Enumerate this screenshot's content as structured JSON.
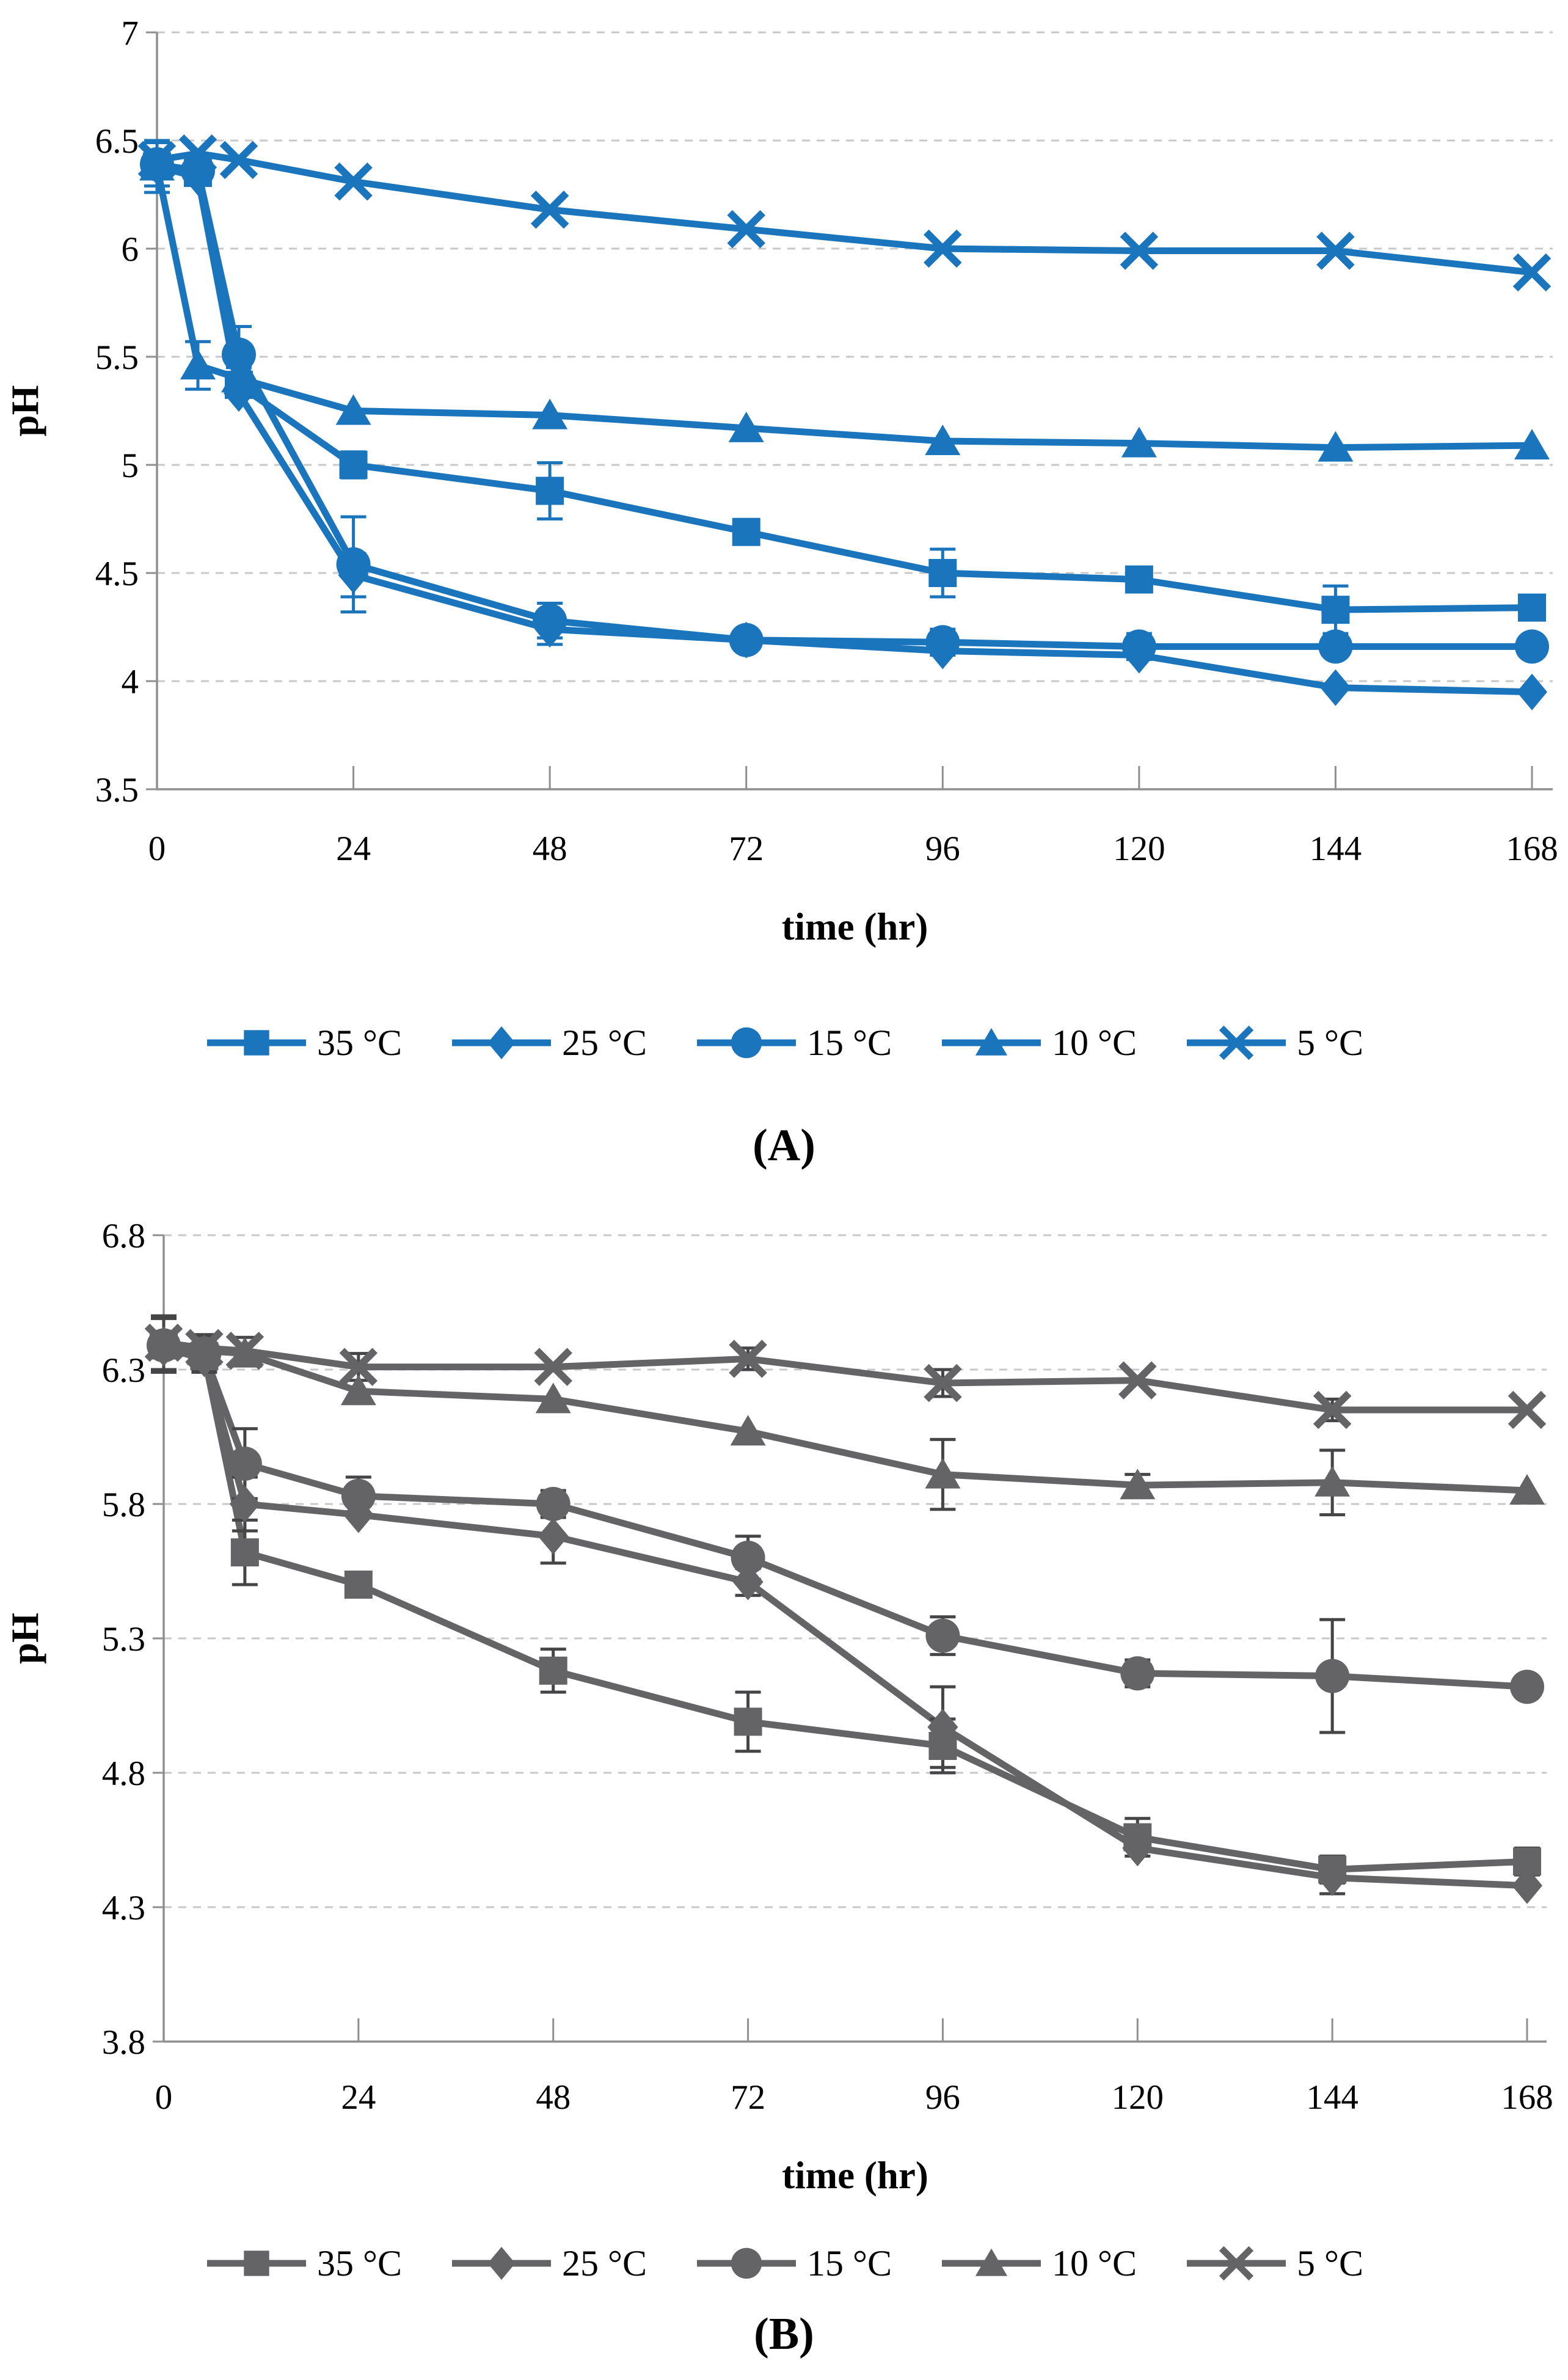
{
  "figure": {
    "caption_a": "(A)",
    "caption_b": "(B)"
  },
  "chart_data": [
    {
      "id": "A",
      "type": "line",
      "caption": "(A)",
      "xlabel": "time (hr)",
      "ylabel": "pH",
      "grid": "horizontal-dashed",
      "legend_position": "bottom",
      "color": "#1b75bc",
      "err_color": "#1b75bc",
      "xlim": [
        0,
        168
      ],
      "ylim": [
        3.5,
        7.0
      ],
      "x": [
        0,
        5,
        10,
        24,
        48,
        72,
        96,
        120,
        144,
        168
      ],
      "xticks": [
        0,
        24,
        48,
        72,
        96,
        120,
        144,
        168
      ],
      "xtick_labels": [
        "0",
        "24",
        "48",
        "72",
        "96",
        "120",
        "144",
        "168"
      ],
      "yticks": [
        7,
        6.5,
        6,
        5.5,
        5,
        4.5,
        4,
        3.5
      ],
      "ytick_labels": [
        "7",
        "6.5",
        "6",
        "5.5",
        "5",
        "4.5",
        "4",
        "3.5"
      ],
      "series": [
        {
          "name": "35 °C",
          "marker": "square",
          "values": [
            6.38,
            6.35,
            5.37,
            5.0,
            4.88,
            4.69,
            4.5,
            4.47,
            4.33,
            4.34
          ],
          "errors": [
            0.12,
            0,
            0,
            0.06,
            0.13,
            0,
            0.11,
            0,
            0.11,
            0
          ]
        },
        {
          "name": "25 °C",
          "marker": "diamond",
          "values": [
            6.38,
            6.33,
            5.33,
            4.49,
            4.24,
            4.19,
            4.14,
            4.12,
            3.97,
            3.95
          ],
          "errors": [
            0,
            0,
            0,
            0.1,
            0.07,
            0,
            0,
            0,
            0,
            0
          ]
        },
        {
          "name": "15 °C",
          "marker": "circle",
          "values": [
            6.39,
            6.36,
            5.51,
            4.54,
            4.28,
            4.19,
            4.18,
            4.16,
            4.16,
            4.16
          ],
          "errors": [
            0.1,
            0,
            0.13,
            0.22,
            0.08,
            0,
            0.06,
            0.06,
            0,
            0
          ]
        },
        {
          "name": "10 °C",
          "marker": "triangle",
          "values": [
            6.38,
            5.46,
            5.4,
            5.25,
            5.23,
            5.17,
            5.11,
            5.1,
            5.08,
            5.09
          ],
          "errors": [
            0,
            0.11,
            0.05,
            0,
            0,
            0,
            0,
            0,
            0,
            0
          ]
        },
        {
          "name": "5 °C",
          "marker": "x",
          "values": [
            6.41,
            6.44,
            6.41,
            6.31,
            6.18,
            6.09,
            6.0,
            5.99,
            5.99,
            5.89
          ],
          "errors": [
            0.08,
            0,
            0,
            0,
            0,
            0,
            0,
            0,
            0,
            0
          ]
        }
      ]
    },
    {
      "id": "B",
      "type": "line",
      "caption": "(B)",
      "xlabel": "time (hr)",
      "ylabel": "pH",
      "grid": "horizontal-dashed",
      "legend_position": "bottom",
      "color": "#646467",
      "err_color": "#454547",
      "xlim": [
        0,
        168
      ],
      "ylim": [
        3.8,
        6.8
      ],
      "x": [
        0,
        5,
        10,
        24,
        48,
        72,
        96,
        120,
        144,
        168
      ],
      "xticks": [
        0,
        24,
        48,
        72,
        96,
        120,
        144,
        168
      ],
      "xtick_labels": [
        "0",
        "24",
        "48",
        "72",
        "96",
        "120",
        "144",
        "168"
      ],
      "yticks": [
        6.8,
        6.3,
        5.8,
        5.3,
        4.8,
        4.3,
        3.8
      ],
      "ytick_labels": [
        "6.8",
        "6.3",
        "5.8",
        "5.3",
        "4.8",
        "4.3",
        "3.8"
      ],
      "series": [
        {
          "name": "35 °C",
          "marker": "square",
          "values": [
            6.39,
            6.35,
            5.62,
            5.5,
            5.18,
            4.99,
            4.9,
            4.56,
            4.44,
            4.47
          ],
          "errors": [
            0.1,
            0.05,
            0.12,
            0,
            0.08,
            0.11,
            0.1,
            0.07,
            0.05,
            0.05
          ]
        },
        {
          "name": "25 °C",
          "marker": "diamond",
          "values": [
            6.38,
            6.34,
            5.8,
            5.76,
            5.68,
            5.51,
            4.97,
            4.52,
            4.41,
            4.38
          ],
          "errors": [
            0,
            0.05,
            0.1,
            0,
            0.1,
            0.05,
            0.15,
            0,
            0.06,
            0
          ]
        },
        {
          "name": "15 °C",
          "marker": "circle",
          "values": [
            6.39,
            6.36,
            5.95,
            5.83,
            5.8,
            5.6,
            5.31,
            5.17,
            5.16,
            5.12
          ],
          "errors": [
            0,
            0,
            0.13,
            0.07,
            0.05,
            0.08,
            0.07,
            0.05,
            0.21,
            0
          ]
        },
        {
          "name": "10 °C",
          "marker": "triangle",
          "values": [
            6.4,
            6.37,
            6.36,
            6.22,
            6.19,
            6.07,
            5.91,
            5.87,
            5.88,
            5.85
          ],
          "errors": [
            0,
            0.05,
            0,
            0,
            0,
            0,
            0.13,
            0.04,
            0.12,
            0
          ]
        },
        {
          "name": "5 °C",
          "marker": "x",
          "values": [
            6.4,
            6.38,
            6.37,
            6.31,
            6.31,
            6.34,
            6.25,
            6.26,
            6.15,
            6.15
          ],
          "errors": [
            0.1,
            0.05,
            0.05,
            0.05,
            0,
            0.04,
            0.05,
            0,
            0.04,
            0
          ]
        }
      ]
    }
  ]
}
